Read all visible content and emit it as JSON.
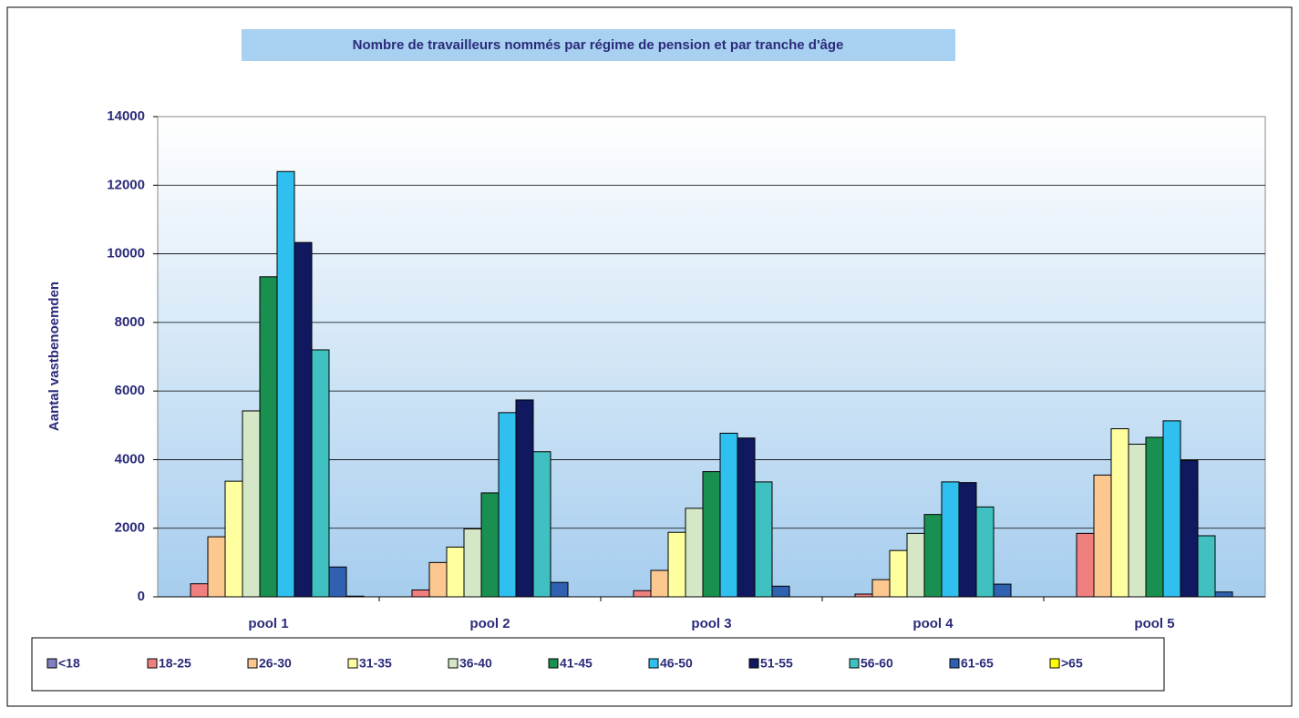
{
  "chart_data": {
    "type": "bar",
    "title": "Nombre de travailleurs nommés par régime de pension et par tranche d'âge",
    "y_label": "Aantal vastbenoemden",
    "categories": [
      "pool 1",
      "pool 2",
      "pool 3",
      "pool 4",
      "pool 5"
    ],
    "series": [
      {
        "name": "<18",
        "color": "#8080c0",
        "values": [
          0,
          0,
          0,
          0,
          0
        ]
      },
      {
        "name": "18-25",
        "color": "#f08080",
        "values": [
          380,
          200,
          180,
          80,
          1850
        ]
      },
      {
        "name": "26-30",
        "color": "#fcc890",
        "values": [
          1750,
          1000,
          770,
          500,
          3550
        ]
      },
      {
        "name": "31-35",
        "color": "#ffffa0",
        "values": [
          3370,
          1450,
          1880,
          1350,
          4900
        ]
      },
      {
        "name": "36-40",
        "color": "#d4e8c8",
        "values": [
          5420,
          1980,
          2580,
          1850,
          4450
        ]
      },
      {
        "name": "41-45",
        "color": "#1a9050",
        "values": [
          9330,
          3030,
          3650,
          2400,
          4650
        ]
      },
      {
        "name": "46-50",
        "color": "#30c0f0",
        "values": [
          12400,
          5370,
          4770,
          3350,
          5130
        ]
      },
      {
        "name": "51-55",
        "color": "#101860",
        "values": [
          10330,
          5740,
          4630,
          3330,
          3970
        ]
      },
      {
        "name": "56-60",
        "color": "#40c0c0",
        "values": [
          7200,
          4230,
          3350,
          2620,
          1780
        ]
      },
      {
        "name": "61-65",
        "color": "#3060b0",
        "values": [
          870,
          420,
          310,
          370,
          140
        ]
      },
      {
        "name": ">65",
        "color": "#ffff00",
        "values": [
          20,
          0,
          0,
          0,
          0
        ]
      }
    ],
    "ylim": [
      0,
      14000
    ],
    "yticks": [
      0,
      2000,
      4000,
      6000,
      8000,
      10000,
      12000,
      14000
    ],
    "grid": true
  }
}
